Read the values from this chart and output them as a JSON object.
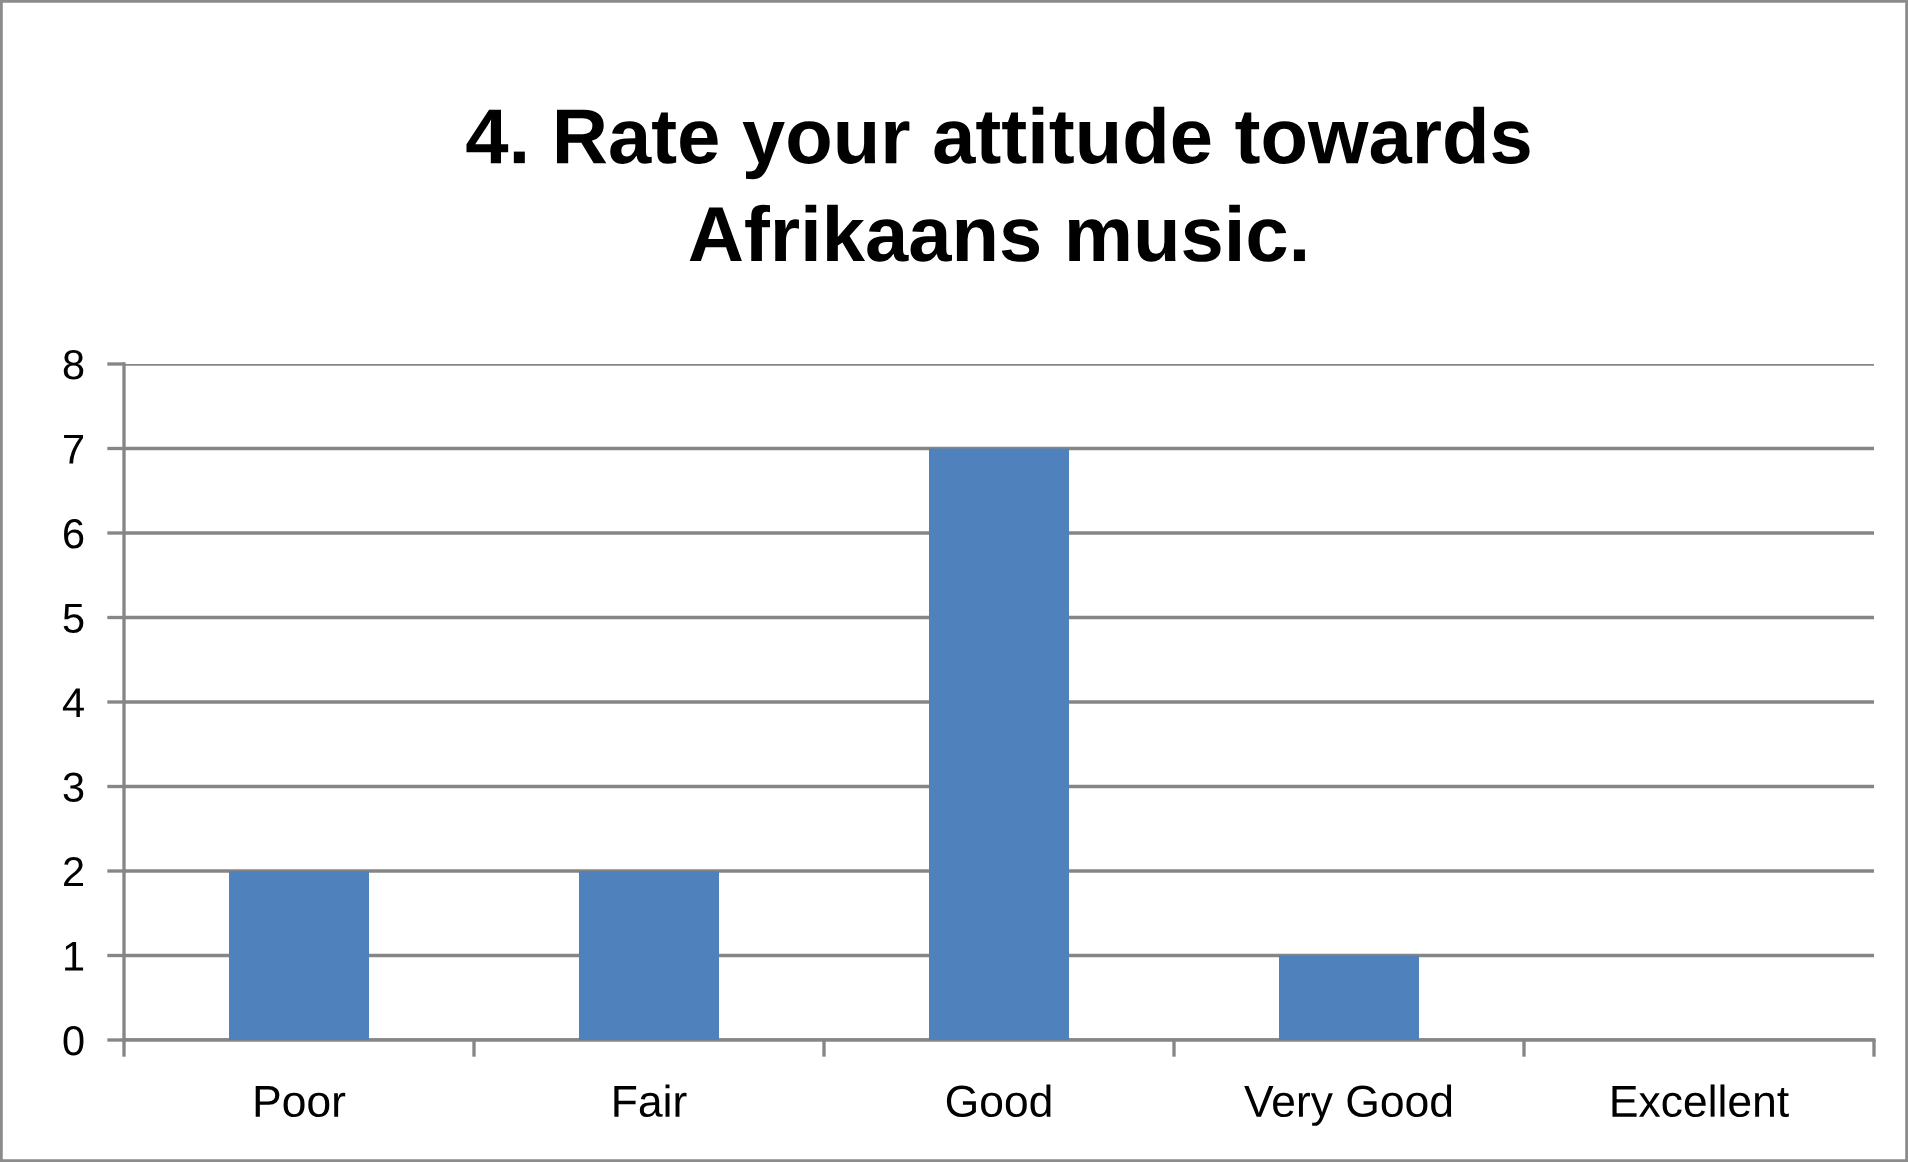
{
  "chart_data": {
    "type": "bar",
    "title": "4. Rate your attitude towards\nAfrikaans music.",
    "categories": [
      "Poor",
      "Fair",
      "Good",
      "Very Good",
      "Excellent"
    ],
    "values": [
      2,
      2,
      7,
      1,
      0
    ],
    "color": "#4f81bd",
    "ylim": [
      0,
      8
    ],
    "yticks": [
      0,
      1,
      2,
      3,
      4,
      5,
      6,
      7,
      8
    ],
    "grid": "y",
    "legend": false
  }
}
